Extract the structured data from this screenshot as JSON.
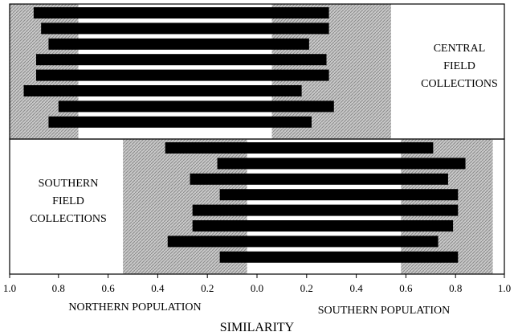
{
  "chart_data": {
    "type": "bar",
    "subtype": "floating-range",
    "xaxis": {
      "tick_labels": [
        "1.0",
        "0.8",
        "0.6",
        "0.4",
        "0.2",
        "0.0",
        "0.2",
        "0.4",
        "0.6",
        "0.8",
        "1.0"
      ],
      "left_label": "NORTHERN POPULATION",
      "right_label": "SOUTHERN POPULATION",
      "title": "SIMILARITY"
    },
    "panels": [
      {
        "label_lines": [
          "CENTRAL",
          "FIELD",
          "COLLECTIONS"
        ],
        "label_side": "right",
        "north_band": [
          -0.72,
          -1.0
        ],
        "south_band": [
          0.06,
          0.54
        ],
        "bars": [
          [
            -0.9,
            0.29
          ],
          [
            -0.87,
            0.29
          ],
          [
            -0.84,
            0.21
          ],
          [
            -0.89,
            0.28
          ],
          [
            -0.89,
            0.29
          ],
          [
            -0.94,
            0.18
          ],
          [
            -0.8,
            0.31
          ],
          [
            -0.84,
            0.22
          ]
        ]
      },
      {
        "label_lines": [
          "SOUTHERN",
          "FIELD",
          "COLLECTIONS"
        ],
        "label_side": "left",
        "north_band": [
          -0.04,
          -0.54
        ],
        "south_band": [
          0.58,
          0.95
        ],
        "bars": [
          [
            -0.37,
            0.71
          ],
          [
            -0.16,
            0.84
          ],
          [
            -0.27,
            0.77
          ],
          [
            -0.15,
            0.81
          ],
          [
            -0.26,
            0.81
          ],
          [
            -0.26,
            0.79
          ],
          [
            -0.36,
            0.73
          ],
          [
            -0.15,
            0.81
          ]
        ]
      }
    ]
  }
}
